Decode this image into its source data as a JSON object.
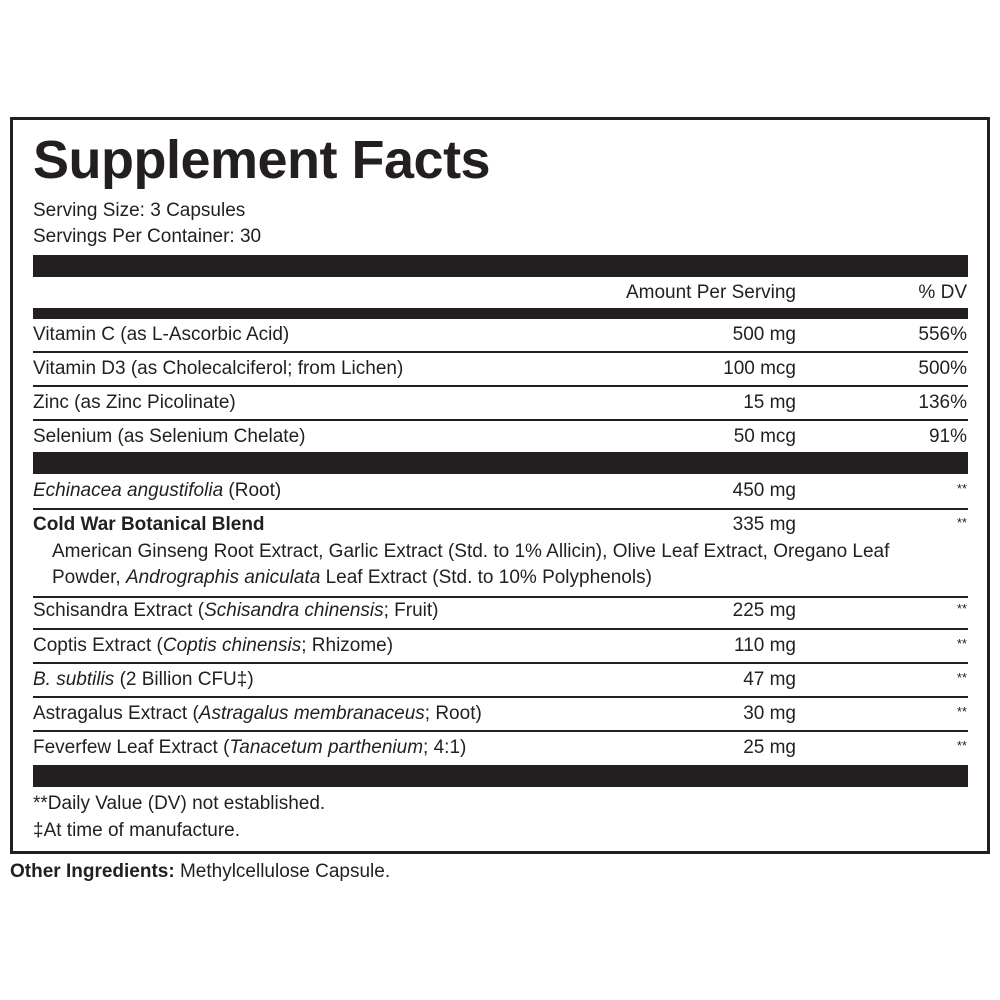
{
  "title": "Supplement Facts",
  "serving_size": "Serving Size: 3 Capsules",
  "servings_per_container": "Servings Per Container: 30",
  "header": {
    "amount": "Amount Per Serving",
    "dv": "% DV"
  },
  "vitamins": [
    {
      "name": [
        {
          "text": "Vitamin C (as L-Ascorbic Acid)"
        }
      ],
      "amount": "500 mg",
      "dv": "556%"
    },
    {
      "name": [
        {
          "text": "Vitamin D3 (as Cholecalciferol; from Lichen)"
        }
      ],
      "amount": "100 mcg",
      "dv": "500%"
    },
    {
      "name": [
        {
          "text": "Zinc (as Zinc Picolinate)"
        }
      ],
      "amount": "15 mg",
      "dv": "136%"
    },
    {
      "name": [
        {
          "text": "Selenium (as Selenium Chelate)"
        }
      ],
      "amount": "50 mcg",
      "dv": "91%"
    }
  ],
  "echinacea": {
    "name": [
      {
        "text": "Echinacea angustifolia",
        "italic": true
      },
      {
        "text": " (Root)"
      }
    ],
    "amount": "450 mg",
    "dv": "**"
  },
  "blend": {
    "name": "Cold War Botanical Blend",
    "amount": "335 mg",
    "dv": "**",
    "line1": "American Ginseng Root Extract, Garlic Extract (Std. to 1% Allicin), Olive Leaf Extract, Oregano Leaf",
    "line2": [
      {
        "text": "Powder, "
      },
      {
        "text": "Andrographis aniculata",
        "italic": true
      },
      {
        "text": " Leaf Extract (Std. to 10% Polyphenols)"
      }
    ]
  },
  "botanicals": [
    {
      "name": [
        {
          "text": "Schisandra Extract ("
        },
        {
          "text": "Schisandra chinensis",
          "italic": true
        },
        {
          "text": "; Fruit)"
        }
      ],
      "amount": "225 mg",
      "dv": "**"
    },
    {
      "name": [
        {
          "text": "Coptis Extract ("
        },
        {
          "text": "Coptis chinensis",
          "italic": true
        },
        {
          "text": "; Rhizome)"
        }
      ],
      "amount": "110 mg",
      "dv": "**"
    },
    {
      "name": [
        {
          "text": "B. subtilis",
          "italic": true
        },
        {
          "text": " (2 Billion CFU‡)"
        }
      ],
      "amount": "47 mg",
      "dv": "**"
    },
    {
      "name": [
        {
          "text": "Astragalus Extract ("
        },
        {
          "text": "Astragalus membranaceus",
          "italic": true
        },
        {
          "text": "; Root)"
        }
      ],
      "amount": "30 mg",
      "dv": "**"
    },
    {
      "name": [
        {
          "text": "Feverfew Leaf Extract ("
        },
        {
          "text": "Tanacetum parthenium",
          "italic": true
        },
        {
          "text": "; 4:1)"
        }
      ],
      "amount": "25 mg",
      "dv": "**"
    }
  ],
  "footnotes": [
    "**Daily Value (DV) not established.",
    "‡At time of manufacture."
  ],
  "other_ingredients": {
    "label": "Other Ingredients:",
    "value": " Methylcellulose Capsule."
  }
}
